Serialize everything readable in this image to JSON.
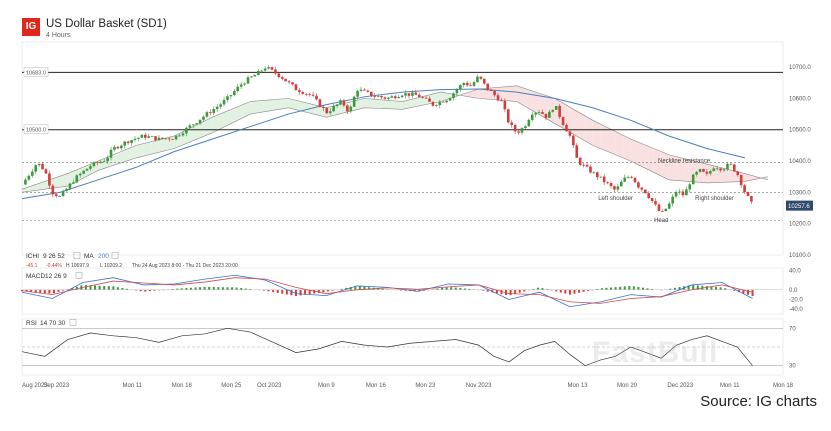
{
  "header": {
    "logo": "IG",
    "title": "US Dollar Basket (SD1)",
    "subtitle": "4 Hours"
  },
  "source": "Source: IG charts",
  "watermark": "FastBull",
  "colors": {
    "up": "#3c9a3c",
    "down": "#d43c3c",
    "ma": "#4a7fc1",
    "cloud_green": "#e3f1e3",
    "cloud_red": "#f9e1e1",
    "price_badge": "#2f4a6b"
  },
  "chart_data": [
    {
      "type": "candlestick",
      "y_range": [
        10100,
        10780
      ],
      "yticks": [
        "10700.0",
        "10600.0",
        "10500.0",
        "10400.0",
        "10300.0",
        "10200.0",
        "10100.0"
      ],
      "ytick_values": [
        10700,
        10600,
        10500,
        10400,
        10300,
        10200,
        10100
      ],
      "level_lines": [
        {
          "label": "10683.0",
          "value": 10683,
          "style": "solid"
        },
        {
          "label": "10500.0",
          "value": 10500,
          "style": "solid"
        },
        {
          "value": 10395,
          "style": "dotted"
        },
        {
          "value": 10300,
          "style": "dotted"
        },
        {
          "value": 10210,
          "style": "dotted"
        }
      ],
      "last_price": {
        "label": "10257.6",
        "value": 10257.6
      },
      "xticks": [
        "Aug 2023",
        "Sep 2023",
        "Mon 11",
        "Mon 18",
        "Mon 25",
        "Oct 2023",
        "Mon 9",
        "Mon 16",
        "Mon 23",
        "Nov 2023",
        "Mon 13",
        "Mon 20",
        "Dec 2023",
        "Mon 11",
        "Mon 18"
      ],
      "xtick_positions": [
        0,
        4.5,
        14.5,
        21,
        27.5,
        32.5,
        40,
        46.5,
        53,
        60,
        73,
        79.5,
        86.5,
        93,
        100
      ],
      "close_points": [
        [
          0,
          10325
        ],
        [
          2,
          10395
        ],
        [
          3,
          10370
        ],
        [
          4,
          10300
        ],
        [
          5,
          10285
        ],
        [
          7,
          10345
        ],
        [
          9,
          10385
        ],
        [
          11,
          10405
        ],
        [
          12,
          10440
        ],
        [
          14,
          10465
        ],
        [
          16,
          10480
        ],
        [
          18,
          10470
        ],
        [
          20,
          10475
        ],
        [
          22,
          10510
        ],
        [
          24,
          10545
        ],
        [
          26,
          10580
        ],
        [
          27,
          10600
        ],
        [
          29,
          10650
        ],
        [
          31,
          10680
        ],
        [
          32,
          10700
        ],
        [
          34,
          10670
        ],
        [
          36,
          10630
        ],
        [
          38,
          10610
        ],
        [
          40,
          10555
        ],
        [
          42,
          10590
        ],
        [
          43,
          10555
        ],
        [
          44,
          10630
        ],
        [
          46,
          10610
        ],
        [
          48,
          10600
        ],
        [
          50,
          10615
        ],
        [
          52,
          10610
        ],
        [
          54,
          10580
        ],
        [
          56,
          10600
        ],
        [
          58,
          10650
        ],
        [
          59,
          10640
        ],
        [
          60,
          10670
        ],
        [
          61,
          10635
        ],
        [
          63,
          10590
        ],
        [
          64,
          10520
        ],
        [
          65,
          10490
        ],
        [
          66,
          10510
        ],
        [
          67,
          10555
        ],
        [
          68,
          10560
        ],
        [
          69,
          10540
        ],
        [
          70,
          10580
        ],
        [
          71,
          10525
        ],
        [
          72,
          10480
        ],
        [
          73,
          10400
        ],
        [
          74,
          10380
        ],
        [
          76,
          10345
        ],
        [
          78,
          10305
        ],
        [
          79,
          10340
        ],
        [
          80,
          10355
        ],
        [
          81,
          10320
        ],
        [
          82,
          10300
        ],
        [
          83,
          10265
        ],
        [
          84,
          10230
        ],
        [
          85,
          10260
        ],
        [
          86,
          10305
        ],
        [
          87,
          10290
        ],
        [
          88,
          10345
        ],
        [
          89,
          10370
        ],
        [
          90,
          10355
        ],
        [
          91,
          10385
        ],
        [
          92,
          10375
        ],
        [
          93,
          10390
        ],
        [
          94,
          10360
        ],
        [
          95,
          10300
        ],
        [
          96,
          10257.6
        ]
      ],
      "ma200": [
        [
          0,
          10280
        ],
        [
          5,
          10300
        ],
        [
          10,
          10340
        ],
        [
          15,
          10380
        ],
        [
          20,
          10430
        ],
        [
          25,
          10470
        ],
        [
          30,
          10510
        ],
        [
          35,
          10550
        ],
        [
          40,
          10580
        ],
        [
          45,
          10605
        ],
        [
          50,
          10620
        ],
        [
          55,
          10628
        ],
        [
          60,
          10630
        ],
        [
          65,
          10620
        ],
        [
          70,
          10600
        ],
        [
          75,
          10570
        ],
        [
          80,
          10530
        ],
        [
          85,
          10480
        ],
        [
          90,
          10440
        ],
        [
          95,
          10410
        ]
      ],
      "ichimoku_a": [
        [
          0,
          10310
        ],
        [
          6,
          10360
        ],
        [
          10,
          10400
        ],
        [
          15,
          10450
        ],
        [
          20,
          10480
        ],
        [
          25,
          10540
        ],
        [
          30,
          10590
        ],
        [
          35,
          10600
        ],
        [
          40,
          10570
        ],
        [
          45,
          10600
        ],
        [
          50,
          10590
        ],
        [
          55,
          10620
        ],
        [
          60,
          10600
        ],
        [
          65,
          10590
        ],
        [
          70,
          10520
        ],
        [
          75,
          10450
        ],
        [
          80,
          10400
        ],
        [
          85,
          10340
        ],
        [
          90,
          10330
        ],
        [
          95,
          10335
        ],
        [
          98,
          10350
        ]
      ],
      "ichimoku_b": [
        [
          0,
          10300
        ],
        [
          6,
          10320
        ],
        [
          10,
          10370
        ],
        [
          15,
          10410
        ],
        [
          20,
          10440
        ],
        [
          25,
          10490
        ],
        [
          30,
          10550
        ],
        [
          35,
          10570
        ],
        [
          40,
          10540
        ],
        [
          45,
          10570
        ],
        [
          50,
          10565
        ],
        [
          55,
          10590
        ],
        [
          60,
          10630
        ],
        [
          65,
          10640
        ],
        [
          70,
          10600
        ],
        [
          75,
          10530
        ],
        [
          80,
          10470
        ],
        [
          85,
          10420
        ],
        [
          90,
          10390
        ],
        [
          95,
          10360
        ],
        [
          98,
          10340
        ]
      ],
      "annotations": [
        {
          "text": "Neckline resistance",
          "x": 87,
          "y": 10395
        },
        {
          "text": "Left shoulder",
          "x": 78,
          "y": 10275
        },
        {
          "text": "Right shoulder",
          "x": 91,
          "y": 10275
        },
        {
          "text": "Head",
          "x": 84,
          "y": 10205
        }
      ],
      "legend": {
        "ichi_label": "ICHI",
        "ichi_params": "9  26  52",
        "ma_label": "MA",
        "ma_params": "200",
        "readout_value": "-45.1",
        "readout_pct": "-0.44%",
        "readout_high": "H 10697.9",
        "readout_low": "L 10209.2",
        "readout_range": "Thu 24 Aug 2023 8:00 - Thu 21 Dec 2023 20:00"
      }
    },
    {
      "type": "macd",
      "legend": {
        "label": "MACD",
        "params": "12  26  9"
      },
      "y_range": [
        -50,
        45
      ],
      "yticks": [
        "40.0",
        "0.0",
        "-20.0",
        "-40.0"
      ],
      "ytick_values": [
        40,
        0,
        -20,
        -40
      ],
      "macd_line": [
        [
          0,
          -5
        ],
        [
          4,
          -18
        ],
        [
          8,
          15
        ],
        [
          12,
          25
        ],
        [
          16,
          10
        ],
        [
          20,
          12
        ],
        [
          24,
          22
        ],
        [
          28,
          30
        ],
        [
          32,
          20
        ],
        [
          36,
          -8
        ],
        [
          40,
          -12
        ],
        [
          44,
          8
        ],
        [
          48,
          5
        ],
        [
          52,
          -3
        ],
        [
          56,
          12
        ],
        [
          60,
          10
        ],
        [
          64,
          -20
        ],
        [
          68,
          -5
        ],
        [
          72,
          -35
        ],
        [
          76,
          -25
        ],
        [
          80,
          -10
        ],
        [
          84,
          -15
        ],
        [
          88,
          10
        ],
        [
          92,
          15
        ],
        [
          96,
          -18
        ]
      ],
      "signal_line": [
        [
          0,
          -2
        ],
        [
          4,
          -10
        ],
        [
          8,
          5
        ],
        [
          12,
          18
        ],
        [
          16,
          14
        ],
        [
          20,
          10
        ],
        [
          24,
          16
        ],
        [
          28,
          25
        ],
        [
          32,
          22
        ],
        [
          36,
          5
        ],
        [
          40,
          -8
        ],
        [
          44,
          0
        ],
        [
          48,
          4
        ],
        [
          52,
          1
        ],
        [
          56,
          6
        ],
        [
          60,
          10
        ],
        [
          64,
          -8
        ],
        [
          68,
          -10
        ],
        [
          72,
          -25
        ],
        [
          76,
          -28
        ],
        [
          80,
          -18
        ],
        [
          84,
          -14
        ],
        [
          88,
          0
        ],
        [
          92,
          10
        ],
        [
          96,
          -5
        ]
      ]
    },
    {
      "type": "rsi",
      "legend": {
        "label": "RSI",
        "params": "14  70  30"
      },
      "y_range": [
        20,
        80
      ],
      "yticks": [
        "70",
        "30"
      ],
      "ytick_values": [
        70,
        30
      ],
      "rsi_line": [
        [
          0,
          45
        ],
        [
          3,
          40
        ],
        [
          6,
          58
        ],
        [
          9,
          65
        ],
        [
          12,
          62
        ],
        [
          15,
          60
        ],
        [
          18,
          55
        ],
        [
          21,
          62
        ],
        [
          24,
          64
        ],
        [
          27,
          70
        ],
        [
          30,
          66
        ],
        [
          33,
          55
        ],
        [
          36,
          44
        ],
        [
          39,
          48
        ],
        [
          42,
          56
        ],
        [
          45,
          52
        ],
        [
          48,
          50
        ],
        [
          51,
          54
        ],
        [
          54,
          56
        ],
        [
          57,
          58
        ],
        [
          60,
          52
        ],
        [
          62,
          40
        ],
        [
          64,
          34
        ],
        [
          66,
          46
        ],
        [
          68,
          52
        ],
        [
          70,
          56
        ],
        [
          72,
          42
        ],
        [
          74,
          30
        ],
        [
          76,
          36
        ],
        [
          78,
          40
        ],
        [
          80,
          50
        ],
        [
          82,
          44
        ],
        [
          84,
          38
        ],
        [
          86,
          52
        ],
        [
          88,
          58
        ],
        [
          90,
          62
        ],
        [
          92,
          56
        ],
        [
          94,
          50
        ],
        [
          96,
          30
        ]
      ]
    }
  ]
}
